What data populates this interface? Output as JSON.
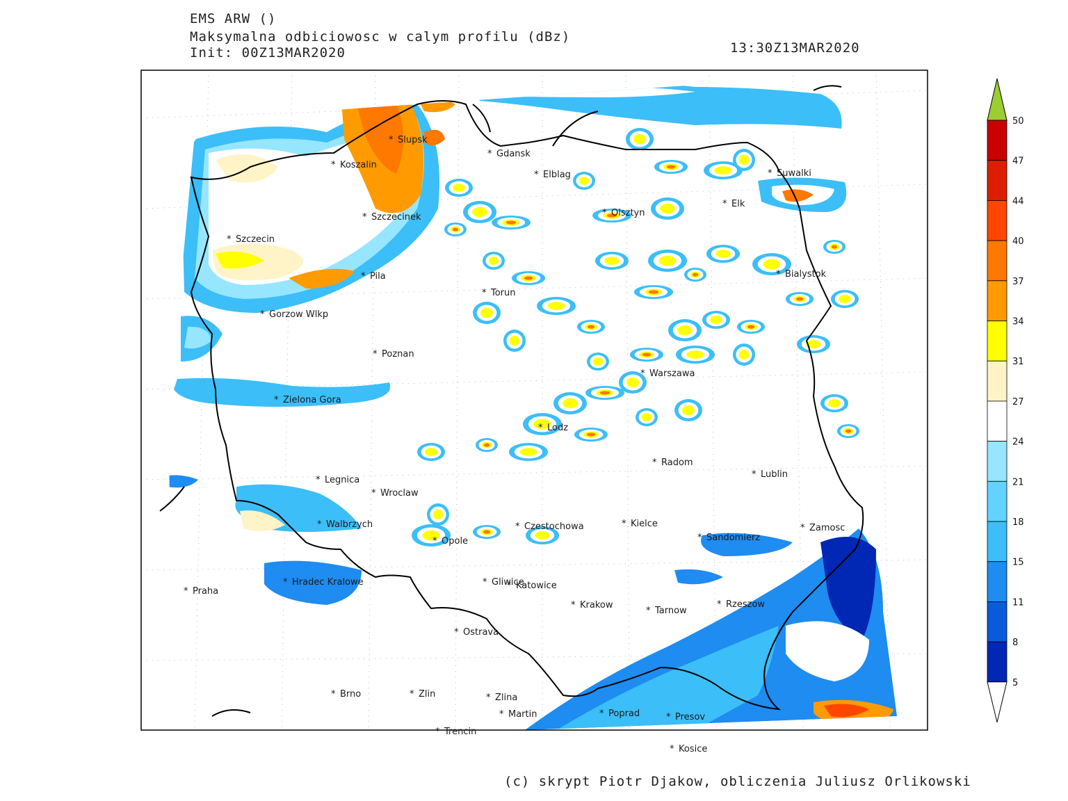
{
  "header": {
    "model": "EMS ARW ()",
    "field": "Maksymalna odbiciowosc w calym profilu (dBz)",
    "init": "Init: 00Z13MAR2020",
    "valid_time": "13:30Z13MAR2020"
  },
  "credit": "(c) skrypt Piotr Djakow, obliczenia Juliusz Orlikowski",
  "colorbar": {
    "levels": [
      "50",
      "47",
      "44",
      "40",
      "37",
      "34",
      "31",
      "27",
      "24",
      "21",
      "18",
      "15",
      "11",
      "8",
      "5"
    ],
    "colors": [
      "#c80000",
      "#dc1e00",
      "#ff4600",
      "#ff7800",
      "#ff9b00",
      "#ffff00",
      "#fff4c8",
      "#ffffff",
      "#96e6ff",
      "#64d2ff",
      "#3cbef8",
      "#1e8cf0",
      "#0a5adc",
      "#0028b4",
      "#ffffff"
    ],
    "top_arrow_color": "#9ccd32"
  },
  "cities": [
    {
      "name": "Slupsk"
    },
    {
      "name": "Gdansk"
    },
    {
      "name": "Koszalin"
    },
    {
      "name": "Elblag"
    },
    {
      "name": "Suwalki"
    },
    {
      "name": "Olsztyn"
    },
    {
      "name": "Elk"
    },
    {
      "name": "Szczecinek"
    },
    {
      "name": "Szczecin"
    },
    {
      "name": "Pila"
    },
    {
      "name": "Bialystok"
    },
    {
      "name": "Torun"
    },
    {
      "name": "Gorzow Wlkp"
    },
    {
      "name": "Poznan"
    },
    {
      "name": "Warszawa"
    },
    {
      "name": "Zielona Gora"
    },
    {
      "name": "Lodz"
    },
    {
      "name": "Radom"
    },
    {
      "name": "Lublin"
    },
    {
      "name": "Legnica"
    },
    {
      "name": "Wroclaw"
    },
    {
      "name": "Kielce"
    },
    {
      "name": "Walbrzych"
    },
    {
      "name": "Czestochowa"
    },
    {
      "name": "Zamosc"
    },
    {
      "name": "Sandomierz"
    },
    {
      "name": "Opole"
    },
    {
      "name": "Hradec Kralowe"
    },
    {
      "name": "Gliwice"
    },
    {
      "name": "Katowice"
    },
    {
      "name": "Praha"
    },
    {
      "name": "Krakow"
    },
    {
      "name": "Tarnow"
    },
    {
      "name": "Rzeszow"
    },
    {
      "name": "Ostrava"
    },
    {
      "name": "Brno"
    },
    {
      "name": "Zlin"
    },
    {
      "name": "Zlina"
    },
    {
      "name": "Martin"
    },
    {
      "name": "Poprad"
    },
    {
      "name": "Presov"
    },
    {
      "name": "Trencin"
    },
    {
      "name": "Kosice"
    }
  ]
}
